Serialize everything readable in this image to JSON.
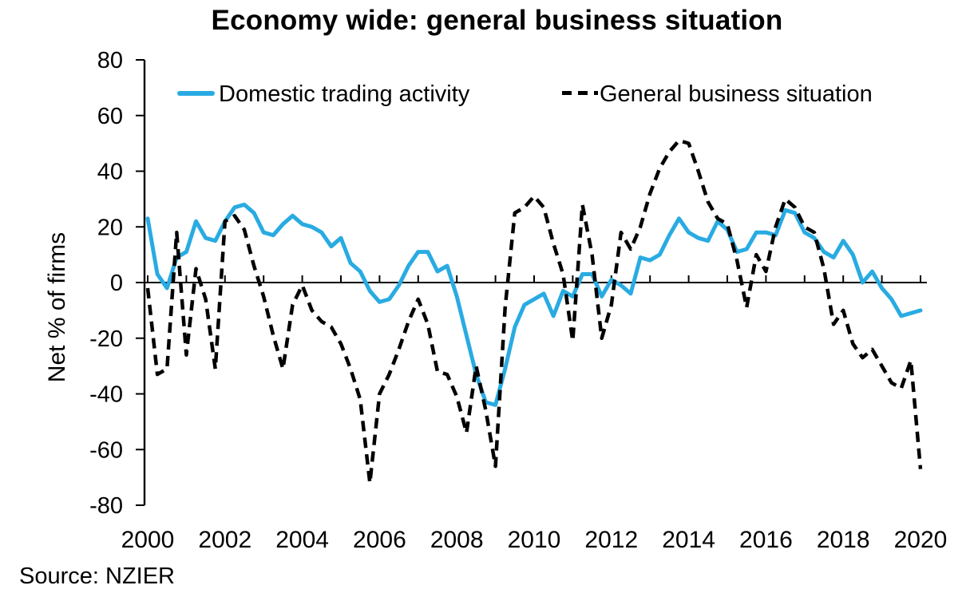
{
  "footer": {
    "source": "Source: NZIER"
  },
  "chart_data": {
    "type": "line",
    "title": "Economy wide: general business situation",
    "xlabel": "",
    "ylabel": "Net % of firms",
    "ylim": [
      -80,
      80
    ],
    "y_ticks": [
      80,
      60,
      40,
      20,
      0,
      -20,
      -40,
      -60,
      -80
    ],
    "x_range_years": [
      2000,
      2020
    ],
    "x_tick_labels": [
      "2000",
      "2002",
      "2004",
      "2006",
      "2008",
      "2010",
      "2012",
      "2014",
      "2016",
      "2018",
      "2020"
    ],
    "frequency": "quarterly",
    "x_start": "2000Q1",
    "x_end": "2020Q1",
    "grid": "none",
    "legend_position": "top-inside",
    "axis_color": "#000000",
    "series": [
      {
        "name": "Domestic trading activity",
        "color": "#29ABE2",
        "style": "solid",
        "values": [
          23,
          3,
          -2,
          9,
          11,
          22,
          16,
          15,
          22,
          27,
          28,
          25,
          18,
          17,
          21,
          24,
          21,
          20,
          18,
          13,
          16,
          7,
          4,
          -3,
          -7,
          -6,
          -1,
          6,
          11,
          11,
          4,
          6,
          -5,
          -19,
          -33,
          -43,
          -44,
          -31,
          -16,
          -8,
          -6,
          -4,
          -12,
          -3,
          -5,
          3,
          3,
          -5,
          1,
          -1,
          -4,
          9,
          8,
          10,
          17,
          23,
          18,
          16,
          15,
          22,
          19,
          11,
          12,
          18,
          18,
          17,
          26,
          25,
          18,
          16,
          11,
          9,
          15,
          10,
          0,
          4,
          -2,
          -6,
          -12,
          -11,
          -10
        ]
      },
      {
        "name": "General business situation",
        "color": "#000000",
        "style": "dashed",
        "values": [
          -2,
          -33,
          -31,
          18,
          -26,
          5,
          -6,
          -31,
          22,
          24,
          19,
          6,
          -5,
          -19,
          -31,
          -8,
          -1,
          -10,
          -14,
          -16,
          -22,
          -31,
          -42,
          -72,
          -40,
          -33,
          -24,
          -14,
          -6,
          -15,
          -32,
          -33,
          -41,
          -54,
          -30,
          -46,
          -66,
          -9,
          25,
          27,
          31,
          27,
          14,
          3,
          -21,
          28,
          10,
          -20,
          -8,
          18,
          12,
          20,
          32,
          41,
          47,
          51,
          50,
          40,
          29,
          23,
          21,
          8,
          -9,
          10,
          4,
          20,
          30,
          27,
          20,
          18,
          5,
          -15,
          -10,
          -22,
          -27,
          -24,
          -30,
          -36,
          -38,
          -28,
          -67
        ]
      }
    ]
  }
}
